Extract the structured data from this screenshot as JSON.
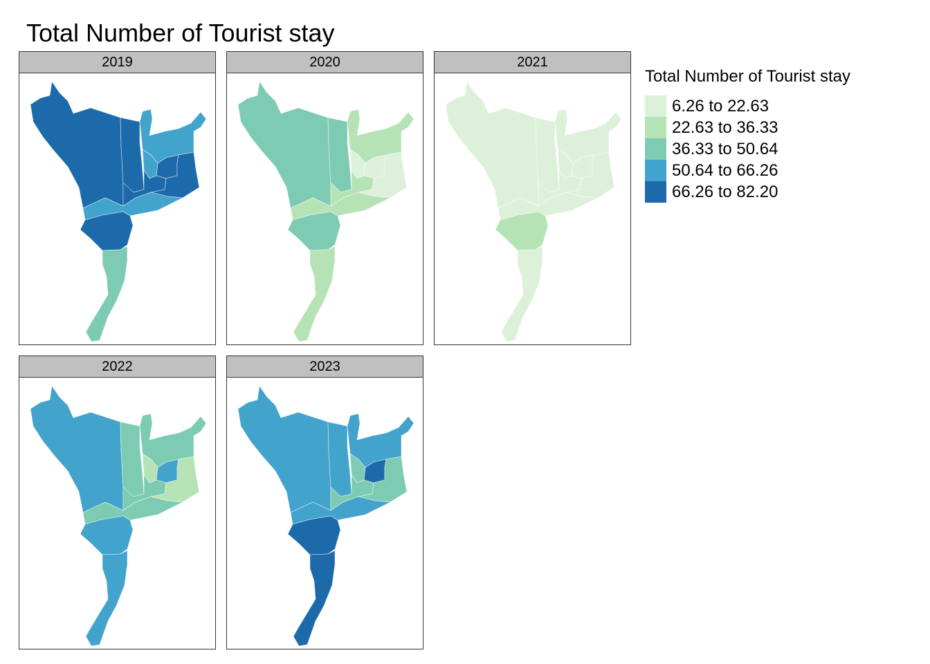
{
  "title": "Total Number of Tourist stay",
  "legend": {
    "title": "Total Number of Tourist stay",
    "classes": [
      {
        "label": "6.26 to 22.63",
        "color": "#ddf1da"
      },
      {
        "label": "22.63 to 36.33",
        "color": "#b6e3b6"
      },
      {
        "label": "36.33 to 50.64",
        "color": "#7ecbb3"
      },
      {
        "label": "50.64 to 66.26",
        "color": "#42a3cc"
      },
      {
        "label": "66.26 to 82.20",
        "color": "#1c6aaa"
      }
    ]
  },
  "panels": [
    {
      "year": "2019",
      "regions": {
        "northwest": 4,
        "north_central": 4,
        "northeast": 3,
        "east_small": 3,
        "east_inner": 4,
        "central": 4,
        "southeast": 4,
        "southwest_upper": 3,
        "south_central": 4,
        "south": 2
      }
    },
    {
      "year": "2020",
      "regions": {
        "northwest": 2,
        "north_central": 2,
        "northeast": 1,
        "east_small": 0,
        "east_inner": 0,
        "central": 1,
        "southeast": 0,
        "southwest_upper": 1,
        "south_central": 2,
        "south": 1
      }
    },
    {
      "year": "2021",
      "regions": {
        "northwest": 0,
        "north_central": 0,
        "northeast": 0,
        "east_small": 0,
        "east_inner": 0,
        "central": 0,
        "southeast": 0,
        "southwest_upper": 0,
        "south_central": 1,
        "south": 0
      }
    },
    {
      "year": "2022",
      "regions": {
        "northwest": 3,
        "north_central": 2,
        "northeast": 2,
        "east_small": 1,
        "east_inner": 3,
        "central": 2,
        "southeast": 1,
        "southwest_upper": 2,
        "south_central": 3,
        "south": 3
      }
    },
    {
      "year": "2023",
      "regions": {
        "northwest": 3,
        "north_central": 3,
        "northeast": 3,
        "east_small": 2,
        "east_inner": 4,
        "central": 2,
        "southeast": 2,
        "southwest_upper": 3,
        "south_central": 4,
        "south": 4
      }
    }
  ]
}
